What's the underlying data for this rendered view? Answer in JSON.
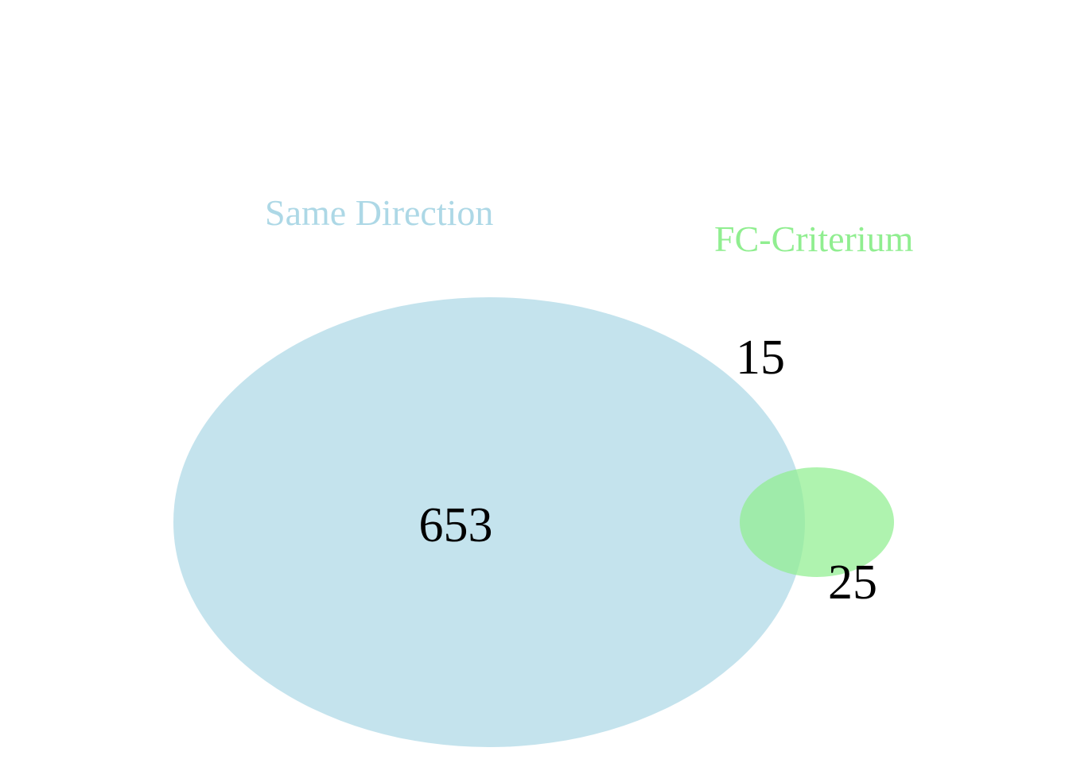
{
  "sets": [
    {
      "id": "same-direction",
      "label": "Same Direction",
      "color": "#ADD8E6"
    },
    {
      "id": "fc-criterium",
      "label": "FC-Criterium",
      "color": "#90EE90"
    }
  ],
  "region_counts": {
    "same_direction_only": "653",
    "both": "15",
    "fc_criterium_only": "25"
  }
}
